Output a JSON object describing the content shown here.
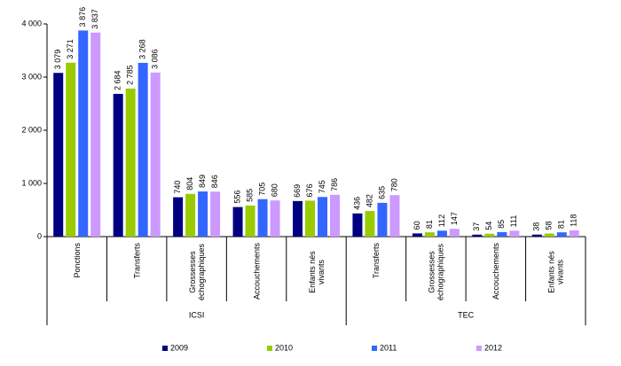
{
  "chart_data": {
    "type": "bar",
    "groups": [
      {
        "label": "ICSI",
        "categories": [
          "Ponctions",
          "Transferts",
          "Grossesses échographiques",
          "Accouchements",
          "Enfants nés vivants"
        ]
      },
      {
        "label": "TEC",
        "categories": [
          "Transferts",
          "Grossesses échographiques",
          "Accouchements",
          "Enfants nés vivants"
        ]
      }
    ],
    "series": [
      {
        "name": "2009",
        "color": "#000080",
        "values": [
          3079,
          2684,
          740,
          556,
          669,
          436,
          60,
          37,
          38
        ],
        "value_labels": [
          "3 079",
          "2 684",
          "740",
          "556",
          "669",
          "436",
          "60",
          "37",
          "38"
        ]
      },
      {
        "name": "2010",
        "color": "#99cc00",
        "values": [
          3271,
          2785,
          804,
          585,
          676,
          482,
          81,
          54,
          58
        ],
        "value_labels": [
          "3 271",
          "2 785",
          "804",
          "585",
          "676",
          "482",
          "81",
          "54",
          "58"
        ]
      },
      {
        "name": "2011",
        "color": "#3366ff",
        "values": [
          3876,
          3268,
          849,
          705,
          745,
          635,
          112,
          85,
          81
        ],
        "value_labels": [
          "3 876",
          "3 268",
          "849",
          "705",
          "745",
          "635",
          "112",
          "85",
          "81"
        ]
      },
      {
        "name": "2012",
        "color": "#cc99ff",
        "values": [
          3837,
          3086,
          846,
          680,
          786,
          780,
          147,
          111,
          118
        ],
        "value_labels": [
          "3 837",
          "3 086",
          "846",
          "680",
          "786",
          "780",
          "147",
          "111",
          "118"
        ]
      }
    ],
    "ylim": [
      0,
      4000
    ],
    "yticks": [
      0,
      {
        "value": 1000,
        "label": "1 000"
      },
      {
        "value": 2000,
        "label": "2 000"
      },
      {
        "value": 3000,
        "label": "3 000"
      },
      {
        "value": 4000,
        "label": "4 000"
      }
    ],
    "grid": false,
    "legend": "bottom"
  }
}
